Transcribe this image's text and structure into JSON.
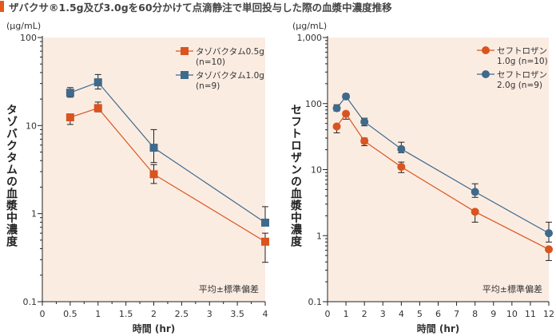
{
  "title": "ザバクサ®1.5g及び3.0gを60分かけて点滴静注で単回投与した際の血漿中濃度推移",
  "colors": {
    "orange": "#d9541f",
    "blue": "#3e6a8c",
    "plot_bg": "#fbece2",
    "accent": "#e05a1e"
  },
  "chart_data": [
    {
      "type": "line",
      "yscale": "log",
      "unit": "(μg/mL)",
      "ylabel": "タゾバクタムの血漿中濃度",
      "xlabel": "時間 (hr)",
      "xlim": [
        0,
        4
      ],
      "ylim": [
        0.1,
        100
      ],
      "xticks": [
        "0",
        "0.5",
        "1",
        "1.5",
        "2",
        "2.5",
        "3",
        "3.5",
        "4"
      ],
      "yticks": [
        "0.1",
        "1",
        "10",
        "100"
      ],
      "note": "平均±標準偏差",
      "legend_position": "top-right",
      "series": [
        {
          "name": "タゾバクタム0.5g",
          "name2": "(n=10)",
          "color": "orange",
          "marker": "square",
          "x": [
            0.5,
            1,
            2,
            4
          ],
          "y": [
            12.4,
            15.8,
            2.8,
            0.48
          ],
          "err_lo": [
            10.3,
            14.3,
            2.2,
            0.28
          ],
          "err_hi": [
            12.4,
            18.5,
            3.6,
            0.6
          ]
        },
        {
          "name": "タゾバクタム1.0g",
          "name2": "(n=9)",
          "color": "blue",
          "marker": "square",
          "x": [
            0.5,
            1,
            2,
            4
          ],
          "y": [
            23.6,
            31,
            5.6,
            0.79
          ],
          "err_lo": [
            21,
            26,
            3.8,
            0.79
          ],
          "err_hi": [
            27,
            38,
            9,
            1.2
          ]
        }
      ]
    },
    {
      "type": "line",
      "yscale": "log",
      "unit": "(μg/mL)",
      "ylabel": "セフトロザンの血漿中濃度",
      "xlabel": "時間 (hr)",
      "xlim": [
        0,
        12
      ],
      "ylim": [
        0.1,
        1000
      ],
      "xticks": [
        "0",
        "1",
        "2",
        "3",
        "4",
        "5",
        "6",
        "7",
        "8",
        "9",
        "10",
        "11",
        "12"
      ],
      "yticks": [
        "0.1",
        "1",
        "10",
        "100",
        "1,000"
      ],
      "note": "平均±標準偏差",
      "legend_position": "top-right",
      "series": [
        {
          "name": "セフトロザン",
          "name2": "1.0g (n=10)",
          "color": "orange",
          "marker": "circle",
          "x": [
            0.5,
            1,
            2,
            4,
            8,
            12
          ],
          "y": [
            45,
            70,
            27,
            11,
            2.3,
            0.62
          ],
          "err_lo": [
            36,
            58,
            23,
            9,
            1.6,
            0.42
          ],
          "err_hi": [
            45,
            70,
            30,
            13,
            2.3,
            0.62
          ]
        },
        {
          "name": "セフトロザン",
          "name2": "2.0g (n=9)",
          "color": "blue",
          "marker": "circle",
          "x": [
            0.5,
            1,
            2,
            4,
            8,
            12
          ],
          "y": [
            85,
            128,
            53,
            20.5,
            4.6,
            1.09
          ],
          "err_lo": [
            77,
            118,
            46,
            18,
            3.8,
            0.8
          ],
          "err_hi": [
            96,
            140,
            60,
            26,
            6.1,
            1.6
          ]
        }
      ]
    }
  ]
}
